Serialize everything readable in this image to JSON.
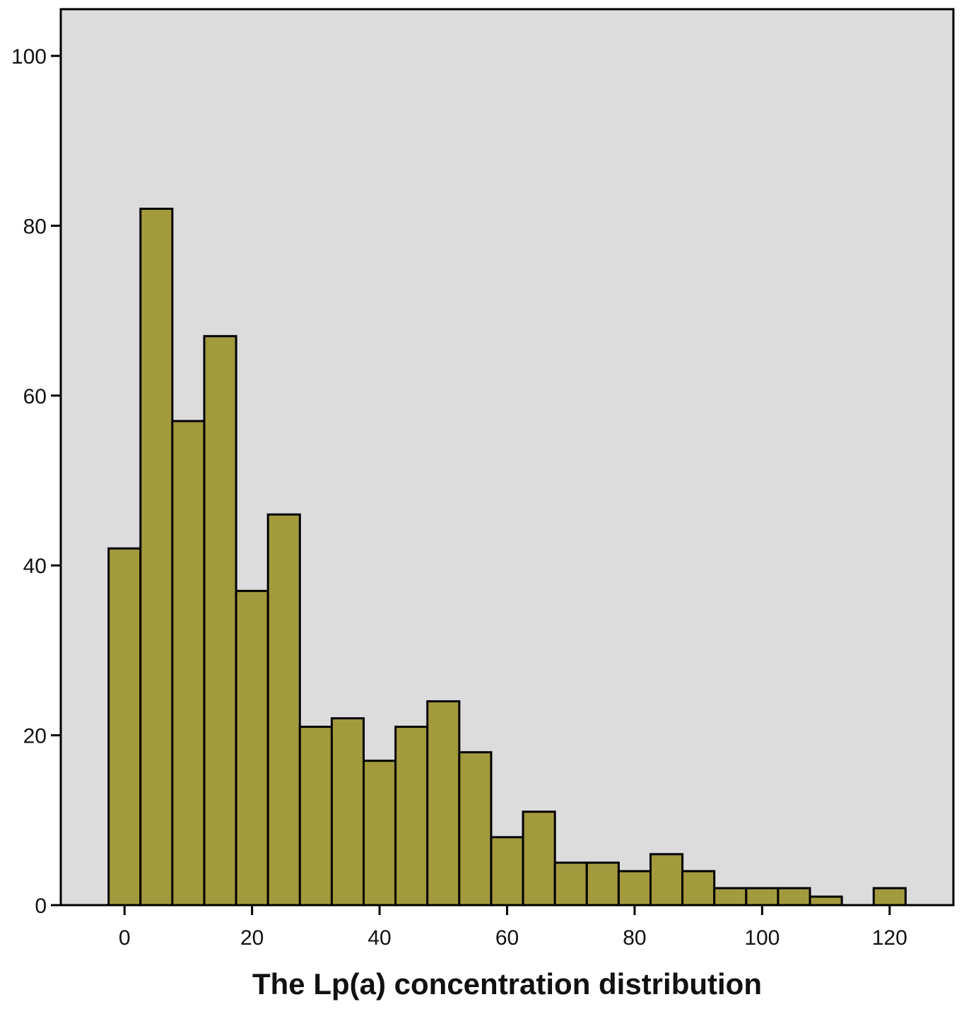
{
  "chart_data": {
    "type": "bar",
    "histogram": true,
    "title": "",
    "xlabel": "The Lp(a) concentration distribution",
    "ylabel": "",
    "bin_width": 5,
    "x_bin_starts": [
      -2.5,
      2.5,
      7.5,
      12.5,
      17.5,
      22.5,
      27.5,
      32.5,
      37.5,
      42.5,
      47.5,
      52.5,
      57.5,
      62.5,
      67.5,
      72.5,
      77.5,
      82.5,
      87.5,
      92.5,
      97.5,
      102.5,
      107.5,
      112.5,
      117.5
    ],
    "values": [
      42,
      82,
      57,
      67,
      37,
      46,
      21,
      22,
      17,
      21,
      24,
      18,
      8,
      11,
      5,
      5,
      4,
      6,
      4,
      2,
      2,
      2,
      1,
      0,
      2
    ],
    "xlim": [
      -10,
      130
    ],
    "ylim": [
      0,
      105.5
    ],
    "x_ticks": [
      0,
      20,
      40,
      60,
      80,
      100,
      120
    ],
    "y_ticks": [
      0,
      20,
      40,
      60,
      80,
      100
    ],
    "x_tick_labels": [
      "0",
      "20",
      "40",
      "60",
      "80",
      "100",
      "120"
    ],
    "y_tick_labels": [
      "0",
      "20",
      "40",
      "60",
      "80",
      "100"
    ],
    "grid": false,
    "colors": {
      "bar_fill": "#A39A3E",
      "bar_stroke": "#000000",
      "plot_background": "#DCDCDC",
      "page_background": "#FFFFFF"
    }
  }
}
